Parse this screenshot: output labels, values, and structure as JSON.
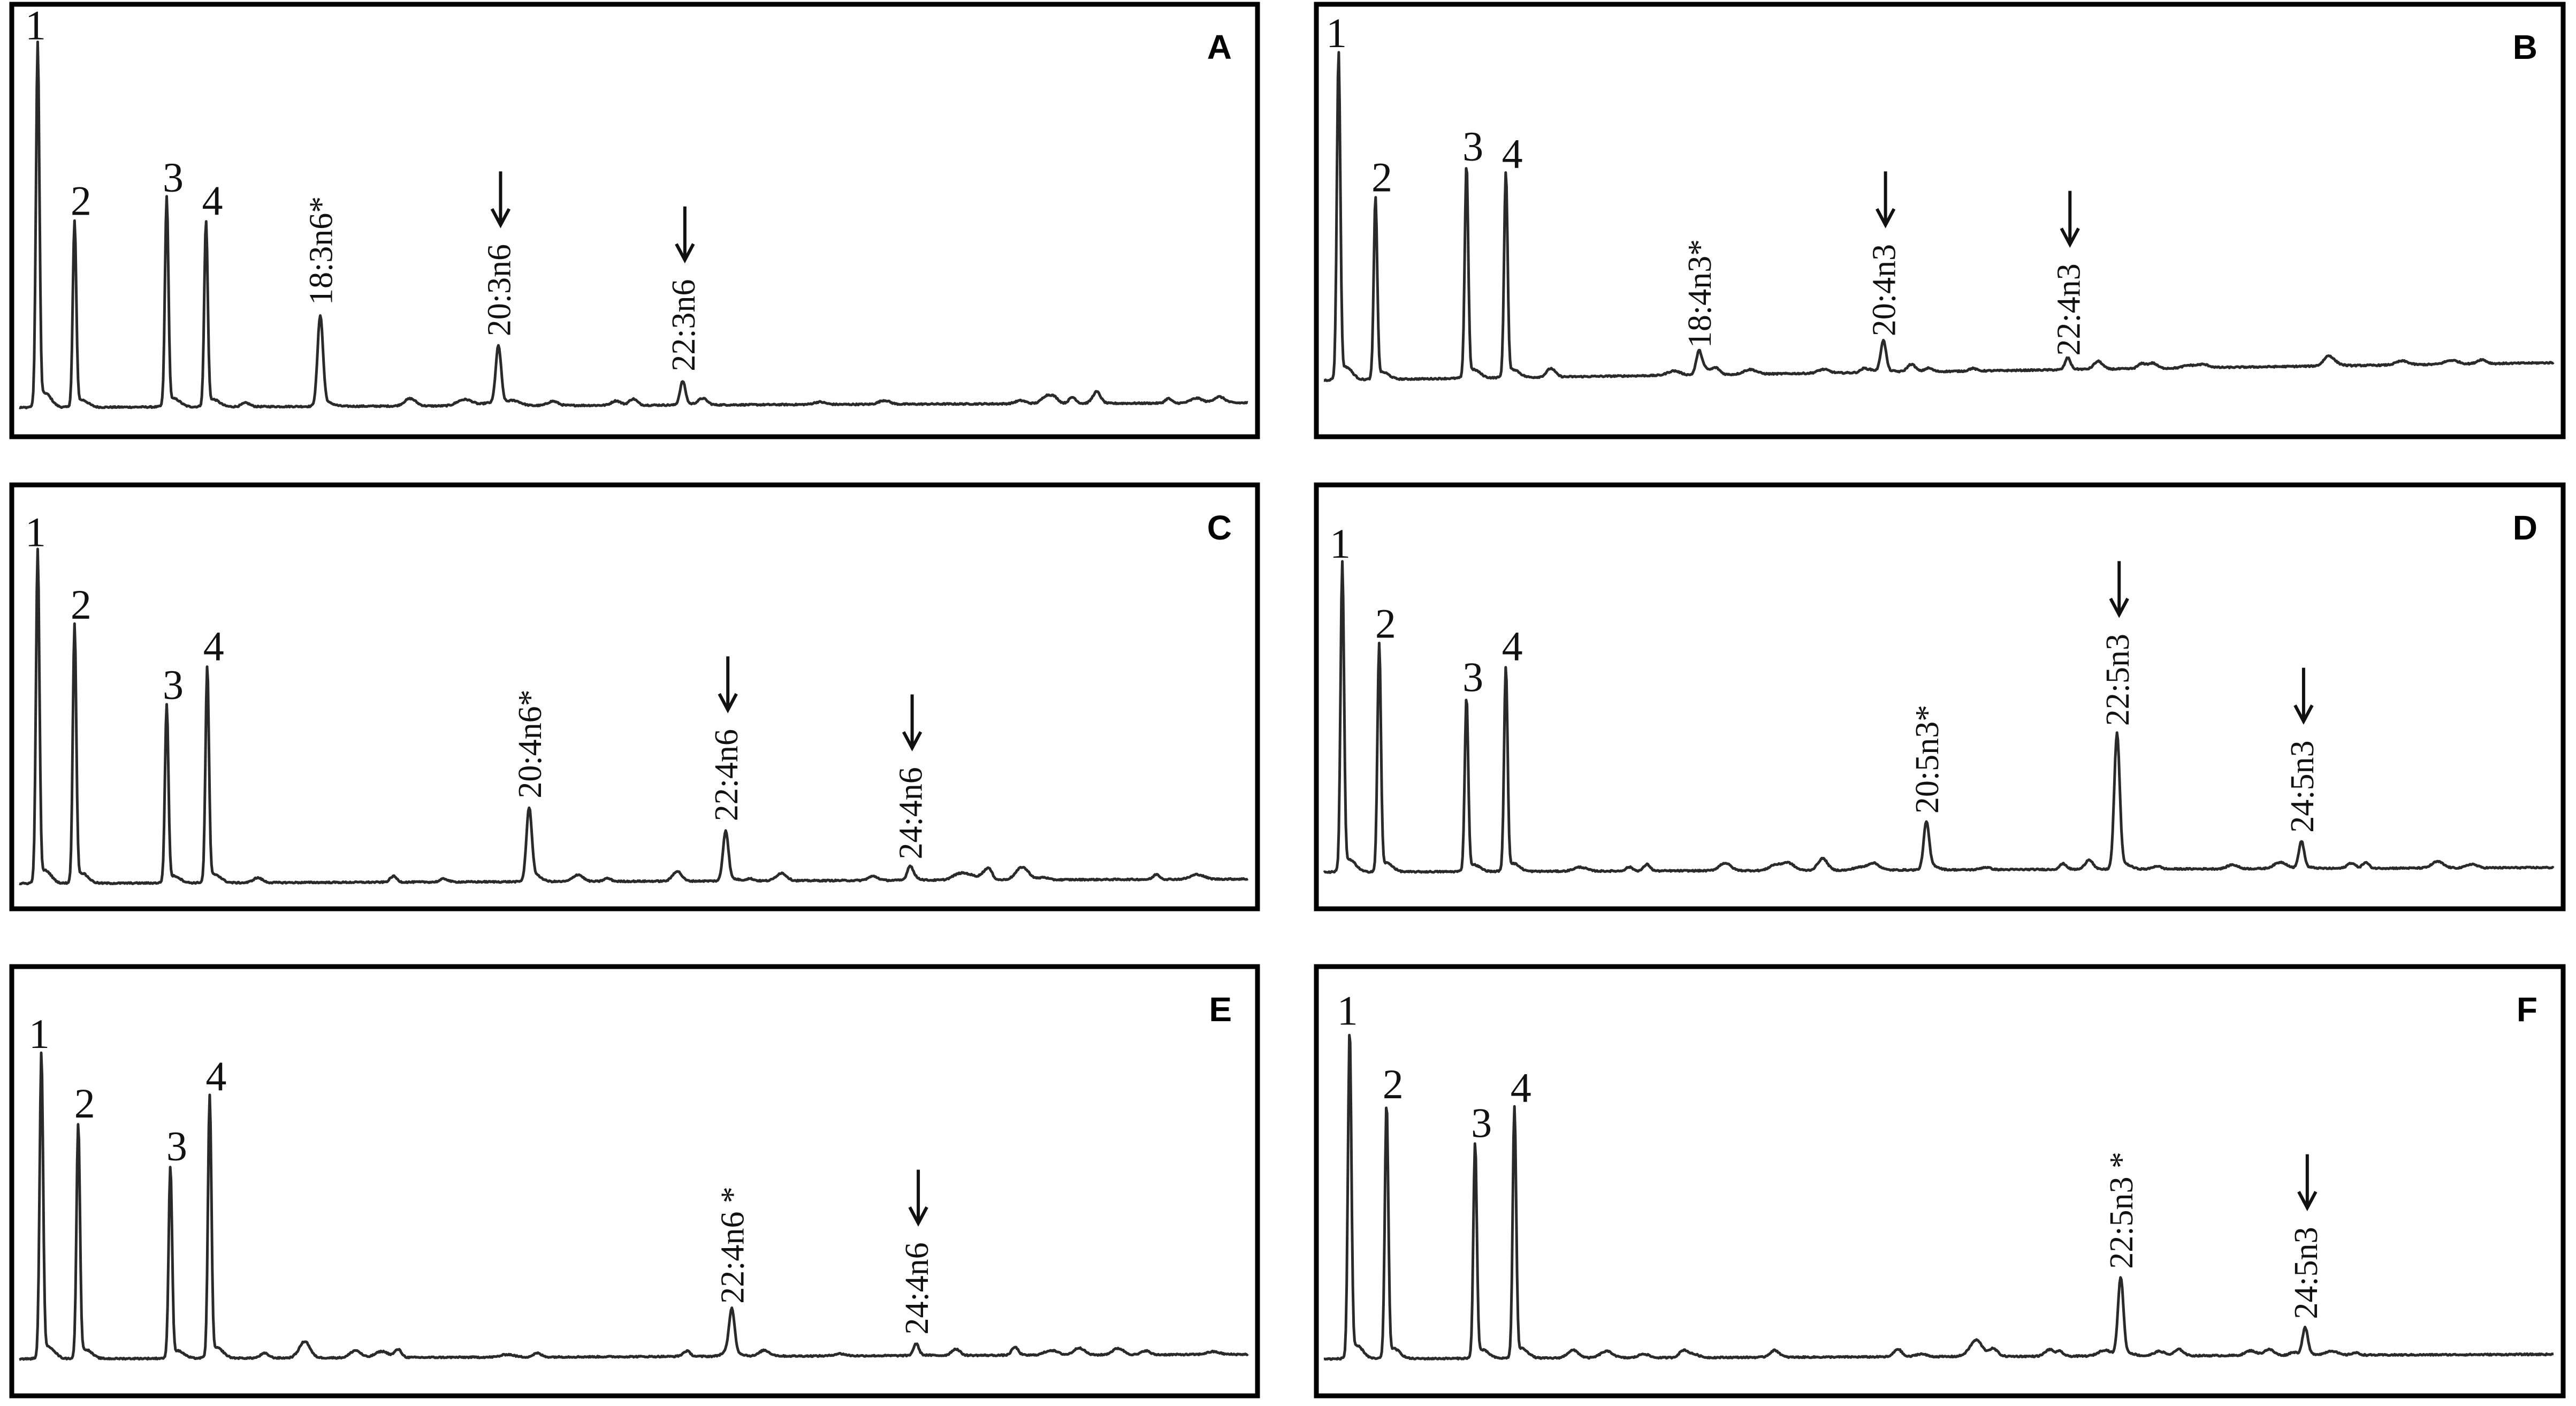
{
  "figure": {
    "background": "#ffffff",
    "trace_color": "#2a2a2a",
    "frame_color": "#000000"
  },
  "chart_data": [
    {
      "type": "line",
      "panel": "A",
      "x_range": [
        0,
        100
      ],
      "y_range": [
        0,
        100
      ],
      "baseline": 2,
      "peaks": [
        {
          "x": 1.5,
          "height": 92,
          "label": "1",
          "arrow": false,
          "rotated": false
        },
        {
          "x": 4.5,
          "height": 47,
          "label": "2",
          "arrow": false,
          "rotated": false
        },
        {
          "x": 12.0,
          "height": 53,
          "label": "3",
          "arrow": false,
          "rotated": false
        },
        {
          "x": 15.2,
          "height": 47,
          "label": "4",
          "arrow": false,
          "rotated": false
        },
        {
          "x": 24.5,
          "height": 23,
          "label": "18:3n6*",
          "arrow": false,
          "rotated": true
        },
        {
          "x": 39.0,
          "height": 15,
          "label": "20:3n6",
          "arrow": true,
          "rotated": true
        },
        {
          "x": 54.0,
          "height": 6,
          "label": "22:3n6",
          "arrow": true,
          "rotated": true
        }
      ]
    },
    {
      "type": "line",
      "panel": "B",
      "x_range": [
        0,
        100
      ],
      "y_range": [
        0,
        100
      ],
      "baseline": 9,
      "peaks": [
        {
          "x": 1.2,
          "height": 83,
          "label": "1",
          "arrow": false,
          "rotated": false
        },
        {
          "x": 4.2,
          "height": 46,
          "label": "2",
          "arrow": false,
          "rotated": false
        },
        {
          "x": 11.6,
          "height": 54,
          "label": "3",
          "arrow": false,
          "rotated": false
        },
        {
          "x": 14.8,
          "height": 52,
          "label": "4",
          "arrow": false,
          "rotated": false
        },
        {
          "x": 30.5,
          "height": 5,
          "label": "18:4n3*",
          "arrow": false,
          "rotated": true
        },
        {
          "x": 45.5,
          "height": 8,
          "label": "20:4n3",
          "arrow": true,
          "rotated": true
        },
        {
          "x": 60.5,
          "height": 3,
          "label": "22:4n3",
          "arrow": true,
          "rotated": true
        }
      ]
    },
    {
      "type": "line",
      "panel": "C",
      "x_range": [
        0,
        100
      ],
      "y_range": [
        0,
        100
      ],
      "baseline": 1,
      "peaks": [
        {
          "x": 1.5,
          "height": 86,
          "label": "1",
          "arrow": false,
          "rotated": false
        },
        {
          "x": 4.5,
          "height": 67,
          "label": "2",
          "arrow": false,
          "rotated": false
        },
        {
          "x": 12.0,
          "height": 46,
          "label": "3",
          "arrow": false,
          "rotated": false
        },
        {
          "x": 15.3,
          "height": 56,
          "label": "4",
          "arrow": false,
          "rotated": false
        },
        {
          "x": 41.5,
          "height": 19,
          "label": "20:4n6*",
          "arrow": false,
          "rotated": true
        },
        {
          "x": 57.5,
          "height": 13,
          "label": "22:4n6",
          "arrow": true,
          "rotated": true
        },
        {
          "x": 72.5,
          "height": 3,
          "label": "24:4n6",
          "arrow": true,
          "rotated": true
        }
      ]
    },
    {
      "type": "line",
      "panel": "D",
      "x_range": [
        0,
        100
      ],
      "y_range": [
        0,
        100
      ],
      "baseline": 4,
      "peaks": [
        {
          "x": 1.5,
          "height": 80,
          "label": "1",
          "arrow": false,
          "rotated": false
        },
        {
          "x": 4.5,
          "height": 59,
          "label": "2",
          "arrow": false,
          "rotated": false
        },
        {
          "x": 11.6,
          "height": 45,
          "label": "3",
          "arrow": false,
          "rotated": false
        },
        {
          "x": 14.8,
          "height": 53,
          "label": "4",
          "arrow": false,
          "rotated": false
        },
        {
          "x": 49.0,
          "height": 12,
          "label": "20:5n3*",
          "arrow": false,
          "rotated": true
        },
        {
          "x": 64.5,
          "height": 35,
          "label": "22:5n3",
          "arrow": true,
          "rotated": true
        },
        {
          "x": 79.5,
          "height": 7,
          "label": "24:5n3",
          "arrow": true,
          "rotated": true
        }
      ]
    },
    {
      "type": "line",
      "panel": "E",
      "x_range": [
        0,
        100
      ],
      "y_range": [
        0,
        100
      ],
      "baseline": 4,
      "peaks": [
        {
          "x": 1.8,
          "height": 78,
          "label": "1",
          "arrow": false,
          "rotated": false
        },
        {
          "x": 4.8,
          "height": 60,
          "label": "2",
          "arrow": false,
          "rotated": false
        },
        {
          "x": 12.3,
          "height": 49,
          "label": "3",
          "arrow": false,
          "rotated": false
        },
        {
          "x": 15.5,
          "height": 67,
          "label": "4",
          "arrow": false,
          "rotated": false
        },
        {
          "x": 58.0,
          "height": 11,
          "label": "22:4n6 *",
          "arrow": false,
          "rotated": true
        },
        {
          "x": 73.0,
          "height": 3,
          "label": "24:4n6",
          "arrow": true,
          "rotated": true
        }
      ]
    },
    {
      "type": "line",
      "panel": "F",
      "x_range": [
        0,
        100
      ],
      "y_range": [
        0,
        100
      ],
      "baseline": 4,
      "peaks": [
        {
          "x": 2.1,
          "height": 84,
          "label": "1",
          "arrow": false,
          "rotated": false
        },
        {
          "x": 5.1,
          "height": 65,
          "label": "2",
          "arrow": false,
          "rotated": false
        },
        {
          "x": 12.3,
          "height": 55,
          "label": "3",
          "arrow": false,
          "rotated": false
        },
        {
          "x": 15.5,
          "height": 64,
          "label": "4",
          "arrow": false,
          "rotated": false
        },
        {
          "x": 64.8,
          "height": 20,
          "label": "22:5n3 *",
          "arrow": false,
          "rotated": true
        },
        {
          "x": 79.8,
          "height": 7,
          "label": "24:5n3",
          "arrow": true,
          "rotated": true
        }
      ]
    }
  ]
}
